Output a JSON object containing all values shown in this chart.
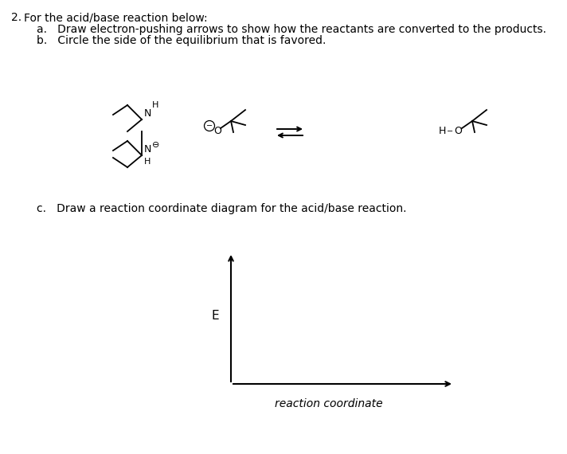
{
  "bg_color": "#ffffff",
  "text_color": "#000000",
  "title": "2.",
  "main_text": "For the acid/base reaction below:",
  "item_a": "a.   Draw electron-pushing arrows to show how the reactants are converted to the products.",
  "item_b": "b.   Circle the side of the equilibrium that is favored.",
  "item_c": "c.   Draw a reaction coordinate diagram for the acid/base reaction.",
  "ylabel": "E",
  "xlabel": "reaction coordinate",
  "fs_main": 10,
  "fs_chem": 9,
  "lw_chem": 1.3
}
